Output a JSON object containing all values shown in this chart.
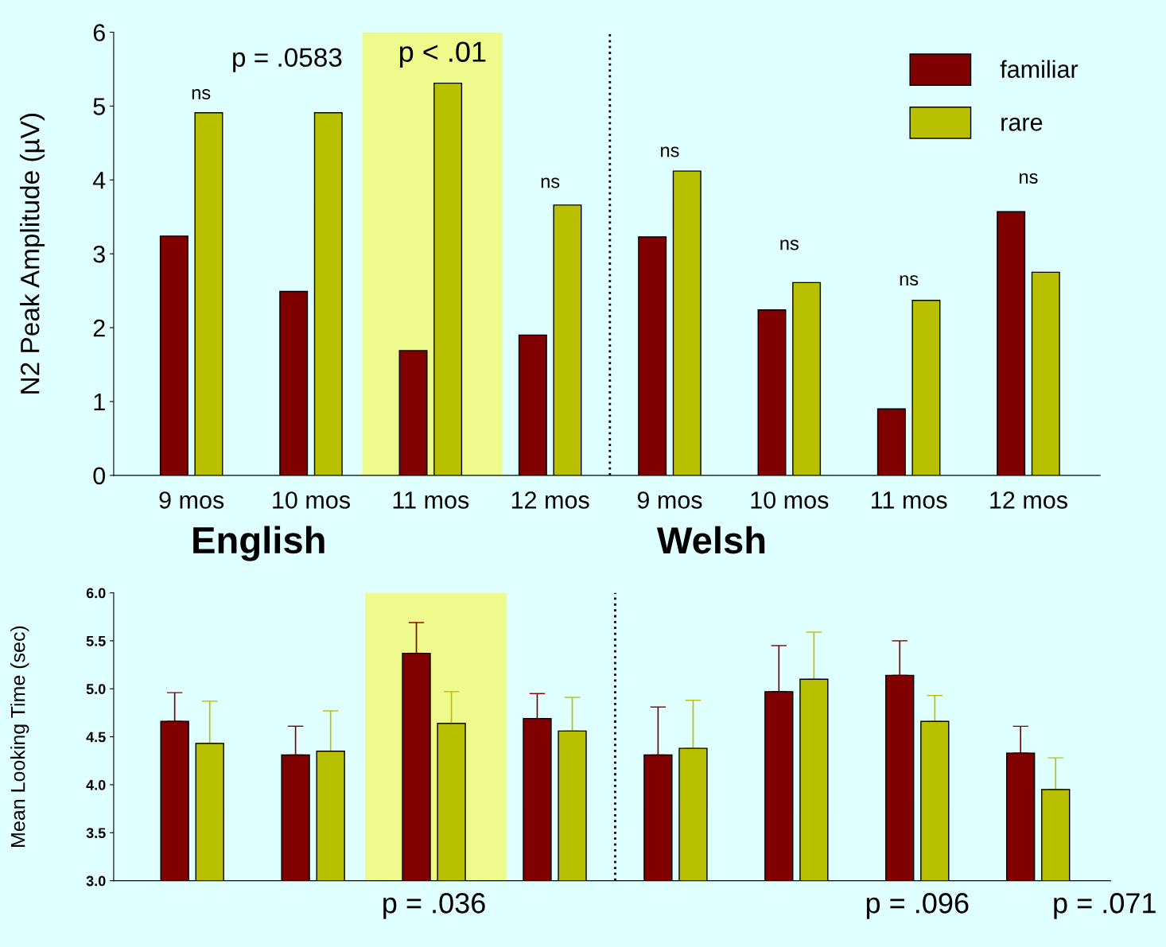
{
  "chart_data": [
    {
      "type": "bar",
      "ylabel": "N2 Peak Amplitude (µV)",
      "categories": [
        "9 mos",
        "10 mos",
        "11 mos",
        "12 mos",
        "9 mos",
        "10 mos",
        "11 mos",
        "12 mos"
      ],
      "series": [
        {
          "name": "familiar",
          "color": "#800000",
          "values": [
            3.24,
            2.49,
            1.69,
            1.9,
            3.23,
            2.24,
            0.9,
            3.57
          ]
        },
        {
          "name": "rare",
          "color": "#b8c000",
          "values": [
            4.91,
            4.91,
            5.31,
            3.66,
            4.12,
            2.61,
            2.37,
            2.75
          ]
        }
      ],
      "ylim": [
        0,
        6
      ],
      "yticks": [
        0,
        1,
        2,
        3,
        4,
        5,
        6
      ],
      "legend": "top right",
      "grid": false,
      "annotations": [
        "ns",
        "p = .0583",
        "p < .01",
        "ns",
        "ns",
        "ns",
        "ns",
        "ns"
      ]
    },
    {
      "type": "bar",
      "ylabel": "Mean Looking Time (sec)",
      "categories": [
        null,
        null,
        null,
        null,
        null,
        null,
        null,
        null
      ],
      "series": [
        {
          "color": "#800000",
          "values": [
            4.66,
            4.31,
            5.37,
            4.69,
            4.31,
            4.97,
            5.14,
            4.33
          ],
          "errors": [
            [
              4.66,
              4.96
            ],
            [
              4.31,
              4.61
            ],
            [
              5.37,
              5.69
            ],
            [
              4.69,
              4.95
            ],
            [
              4.31,
              4.81
            ],
            [
              4.97,
              5.45
            ],
            [
              5.14,
              5.5
            ],
            [
              4.33,
              4.61
            ]
          ]
        },
        {
          "color": "#b8c000",
          "values": [
            4.43,
            4.35,
            4.64,
            4.56,
            4.38,
            5.1,
            4.66,
            3.95
          ],
          "errors": [
            [
              4.43,
              4.87
            ],
            [
              4.35,
              4.77
            ],
            [
              4.64,
              4.97
            ],
            [
              4.56,
              4.91
            ],
            [
              4.38,
              4.88
            ],
            [
              5.1,
              5.59
            ],
            [
              4.66,
              4.93
            ],
            [
              3.95,
              4.28
            ]
          ]
        }
      ],
      "ylim": [
        3,
        6
      ],
      "yticks": [
        {
          "value": 3,
          "label": "3.0"
        },
        {
          "value": 3.5,
          "label": "3.5"
        },
        {
          "value": 4,
          "label": "4.0"
        },
        {
          "value": 4.5,
          "label": "4.5"
        },
        {
          "value": 5,
          "label": "5.0"
        },
        {
          "value": 5.5,
          "label": "5.5"
        },
        {
          "value": 6,
          "label": "6.0"
        }
      ],
      "legend": false,
      "grid": false,
      "annotations": [
        "English",
        "Welsh",
        "p = .036",
        "p = .096",
        "p = .071"
      ]
    }
  ]
}
